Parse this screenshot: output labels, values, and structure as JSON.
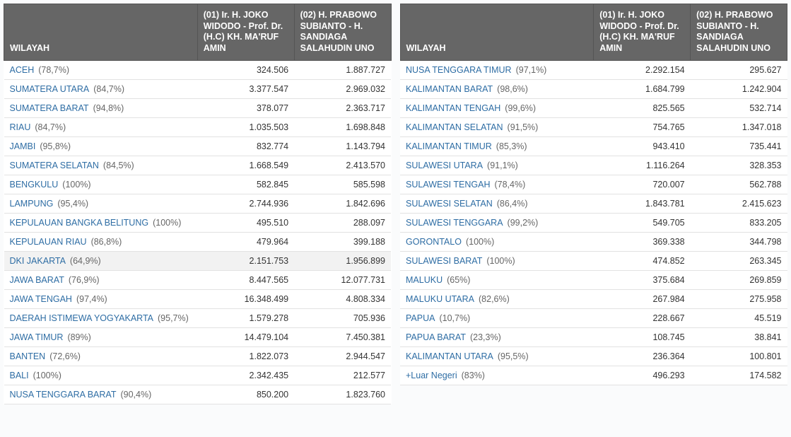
{
  "headers": {
    "wilayah": "WILAYAH",
    "cand1": "(01) Ir. H. JOKO WIDODO - Prof. Dr. (H.C) KH. MA'RUF AMIN",
    "cand2": "(02) H. PRABOWO SUBIANTO - H. SANDIAGA SALAHUDIN UNO"
  },
  "left": [
    {
      "name": "ACEH",
      "pct": "(78,7%)",
      "v1": "324.506",
      "v2": "1.887.727",
      "hl": false
    },
    {
      "name": "SUMATERA UTARA",
      "pct": "(84,7%)",
      "v1": "3.377.547",
      "v2": "2.969.032",
      "hl": false
    },
    {
      "name": "SUMATERA BARAT",
      "pct": "(94,8%)",
      "v1": "378.077",
      "v2": "2.363.717",
      "hl": false
    },
    {
      "name": "RIAU",
      "pct": "(84,7%)",
      "v1": "1.035.503",
      "v2": "1.698.848",
      "hl": false
    },
    {
      "name": "JAMBI",
      "pct": "(95,8%)",
      "v1": "832.774",
      "v2": "1.143.794",
      "hl": false
    },
    {
      "name": "SUMATERA SELATAN",
      "pct": "(84,5%)",
      "v1": "1.668.549",
      "v2": "2.413.570",
      "hl": false
    },
    {
      "name": "BENGKULU",
      "pct": "(100%)",
      "v1": "582.845",
      "v2": "585.598",
      "hl": false
    },
    {
      "name": "LAMPUNG",
      "pct": "(95,4%)",
      "v1": "2.744.936",
      "v2": "1.842.696",
      "hl": false
    },
    {
      "name": "KEPULAUAN BANGKA BELITUNG",
      "pct": "(100%)",
      "v1": "495.510",
      "v2": "288.097",
      "hl": false
    },
    {
      "name": "KEPULAUAN RIAU",
      "pct": "(86,8%)",
      "v1": "479.964",
      "v2": "399.188",
      "hl": false
    },
    {
      "name": "DKI JAKARTA",
      "pct": "(64,9%)",
      "v1": "2.151.753",
      "v2": "1.956.899",
      "hl": true
    },
    {
      "name": "JAWA BARAT",
      "pct": "(76,9%)",
      "v1": "8.447.565",
      "v2": "12.077.731",
      "hl": false
    },
    {
      "name": "JAWA TENGAH",
      "pct": "(97,4%)",
      "v1": "16.348.499",
      "v2": "4.808.334",
      "hl": false
    },
    {
      "name": "DAERAH ISTIMEWA YOGYAKARTA",
      "pct": "(95,7%)",
      "v1": "1.579.278",
      "v2": "705.936",
      "hl": false
    },
    {
      "name": "JAWA TIMUR",
      "pct": "(89%)",
      "v1": "14.479.104",
      "v2": "7.450.381",
      "hl": false
    },
    {
      "name": "BANTEN",
      "pct": "(72,6%)",
      "v1": "1.822.073",
      "v2": "2.944.547",
      "hl": false
    },
    {
      "name": "BALI",
      "pct": "(100%)",
      "v1": "2.342.435",
      "v2": "212.577",
      "hl": false
    },
    {
      "name": "NUSA TENGGARA BARAT",
      "pct": "(90,4%)",
      "v1": "850.200",
      "v2": "1.823.760",
      "hl": false
    }
  ],
  "right": [
    {
      "name": "NUSA TENGGARA TIMUR",
      "pct": "(97,1%)",
      "v1": "2.292.154",
      "v2": "295.627",
      "hl": false
    },
    {
      "name": "KALIMANTAN BARAT",
      "pct": "(98,6%)",
      "v1": "1.684.799",
      "v2": "1.242.904",
      "hl": false
    },
    {
      "name": "KALIMANTAN TENGAH",
      "pct": "(99,6%)",
      "v1": "825.565",
      "v2": "532.714",
      "hl": false
    },
    {
      "name": "KALIMANTAN SELATAN",
      "pct": "(91,5%)",
      "v1": "754.765",
      "v2": "1.347.018",
      "hl": false
    },
    {
      "name": "KALIMANTAN TIMUR",
      "pct": "(85,3%)",
      "v1": "943.410",
      "v2": "735.441",
      "hl": false
    },
    {
      "name": "SULAWESI UTARA",
      "pct": "(91,1%)",
      "v1": "1.116.264",
      "v2": "328.353",
      "hl": false
    },
    {
      "name": "SULAWESI TENGAH",
      "pct": "(78,4%)",
      "v1": "720.007",
      "v2": "562.788",
      "hl": false
    },
    {
      "name": "SULAWESI SELATAN",
      "pct": "(86,4%)",
      "v1": "1.843.781",
      "v2": "2.415.623",
      "hl": false
    },
    {
      "name": "SULAWESI TENGGARA",
      "pct": "(99,2%)",
      "v1": "549.705",
      "v2": "833.205",
      "hl": false
    },
    {
      "name": "GORONTALO",
      "pct": "(100%)",
      "v1": "369.338",
      "v2": "344.798",
      "hl": false
    },
    {
      "name": "SULAWESI BARAT",
      "pct": "(100%)",
      "v1": "474.852",
      "v2": "263.345",
      "hl": false
    },
    {
      "name": "MALUKU",
      "pct": "(65%)",
      "v1": "375.684",
      "v2": "269.859",
      "hl": false
    },
    {
      "name": "MALUKU UTARA",
      "pct": "(82,6%)",
      "v1": "267.984",
      "v2": "275.958",
      "hl": false
    },
    {
      "name": "PAPUA",
      "pct": "(10,7%)",
      "v1": "228.667",
      "v2": "45.519",
      "hl": false
    },
    {
      "name": "PAPUA BARAT",
      "pct": "(23,3%)",
      "v1": "108.745",
      "v2": "38.841",
      "hl": false
    },
    {
      "name": "KALIMANTAN UTARA",
      "pct": "(95,5%)",
      "v1": "236.364",
      "v2": "100.801",
      "hl": false
    },
    {
      "name": "+Luar Negeri",
      "pct": "(83%)",
      "v1": "496.293",
      "v2": "174.582",
      "hl": false
    }
  ]
}
